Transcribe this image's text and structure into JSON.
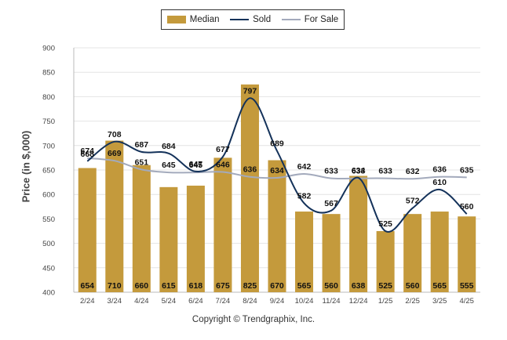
{
  "chart_data": {
    "type": "bar",
    "title": "",
    "xlabel": "",
    "ylabel": "Price (in $,000)",
    "ylim": [
      400,
      900
    ],
    "yticks": [
      400,
      450,
      500,
      550,
      600,
      650,
      700,
      750,
      800,
      850,
      900
    ],
    "categories": [
      "2/24",
      "3/24",
      "4/24",
      "5/24",
      "6/24",
      "7/24",
      "8/24",
      "9/24",
      "10/24",
      "11/24",
      "12/24",
      "1/25",
      "2/25",
      "3/25",
      "4/25"
    ],
    "series": [
      {
        "name": "Median",
        "kind": "bar",
        "values": [
          654,
          710,
          660,
          615,
          618,
          675,
          825,
          670,
          565,
          560,
          638,
          525,
          560,
          565,
          555
        ]
      },
      {
        "name": "Sold",
        "kind": "line",
        "values": [
          668,
          708,
          687,
          684,
          647,
          677,
          797,
          689,
          582,
          567,
          634,
          525,
          572,
          610,
          560
        ]
      },
      {
        "name": "For Sale",
        "kind": "line",
        "values": [
          674,
          669,
          651,
          645,
          645,
          646,
          636,
          634,
          642,
          633,
          633,
          633,
          632,
          636,
          635
        ]
      }
    ],
    "grid": true,
    "legend_position": "top-center",
    "colors": {
      "Median": "#c49a3c",
      "Sold": "#14325a",
      "For Sale": "#a3aabc"
    }
  },
  "legend": {
    "items": [
      "Median",
      "Sold",
      "For Sale"
    ]
  },
  "footer": {
    "copyright": "Copyright © Trendgraphix, Inc."
  }
}
